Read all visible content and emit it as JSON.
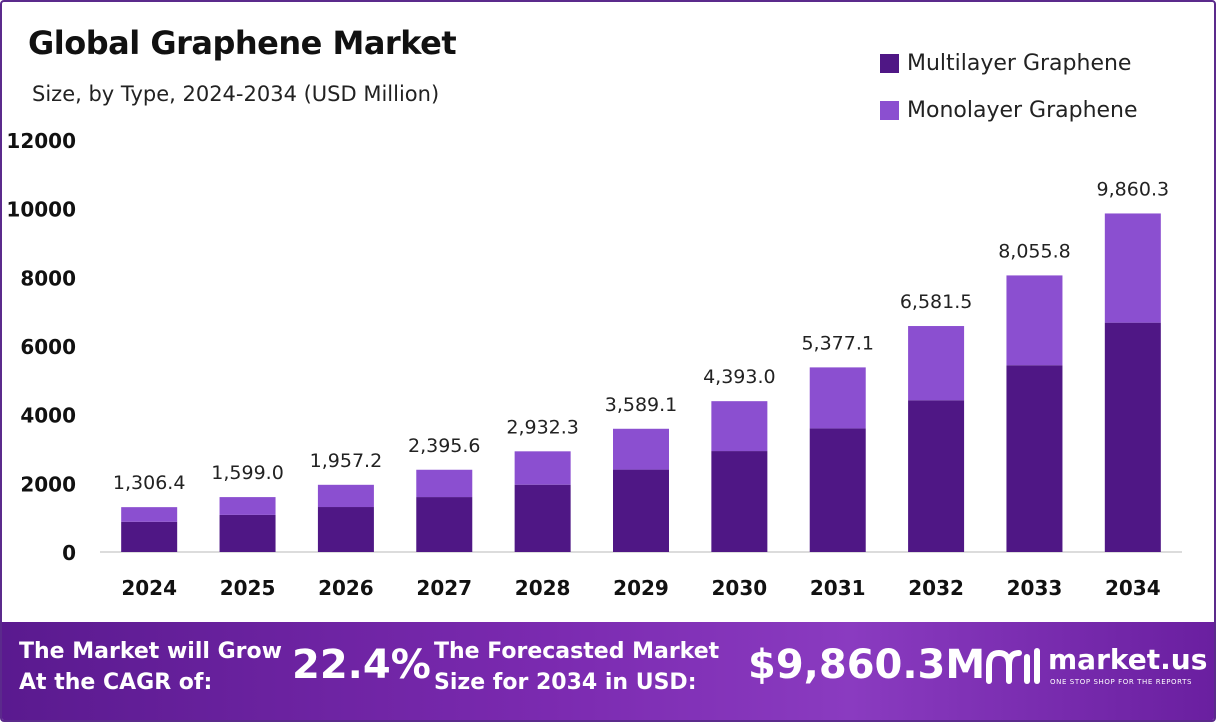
{
  "chart_data": {
    "type": "bar",
    "stacked": true,
    "title": "Global Graphene Market",
    "subtitle": "Size, by Type, 2024-2034 (USD Million)",
    "categories": [
      "2024",
      "2025",
      "2026",
      "2027",
      "2028",
      "2029",
      "2030",
      "2031",
      "2032",
      "2033",
      "2034"
    ],
    "series": [
      {
        "name": "Multilayer Graphene",
        "color": "#4f1785",
        "values": [
          880,
          1080,
          1310,
          1600,
          1960,
          2400,
          2940,
          3600,
          4420,
          5440,
          6680
        ]
      },
      {
        "name": "Monolayer Graphene",
        "color": "#8b4fd0",
        "values": [
          426.4,
          519.0,
          647.2,
          795.6,
          972.3,
          1189.1,
          1453.0,
          1777.1,
          2161.5,
          2615.8,
          3180.3
        ]
      }
    ],
    "totals": [
      1306.4,
      1599.0,
      1957.2,
      2395.6,
      2932.3,
      3589.1,
      4393.0,
      5377.1,
      6581.5,
      8055.8,
      9860.3
    ],
    "total_labels": [
      "1,306.4",
      "1,599.0",
      "1,957.2",
      "2,395.6",
      "2,932.3",
      "3,589.1",
      "4,393.0",
      "5,377.1",
      "6,581.5",
      "8,055.8",
      "9,860.3"
    ],
    "ylim": [
      0,
      12000
    ],
    "yticks": [
      0,
      2000,
      4000,
      6000,
      8000,
      10000,
      12000
    ],
    "grid": false,
    "legend_position": "top-right"
  },
  "footer": {
    "cagr_line1": "The Market will Grow",
    "cagr_line2": "At the CAGR of:",
    "cagr_value": "22.4%",
    "forecast_line1": "The Forecasted Market",
    "forecast_line2": "Size for 2034 in USD:",
    "forecast_value": "$9,860.3M",
    "brand_name": "market.us",
    "brand_tagline": "ONE STOP SHOP FOR THE REPORTS",
    "brand_icon": "market-us-logo-icon"
  }
}
